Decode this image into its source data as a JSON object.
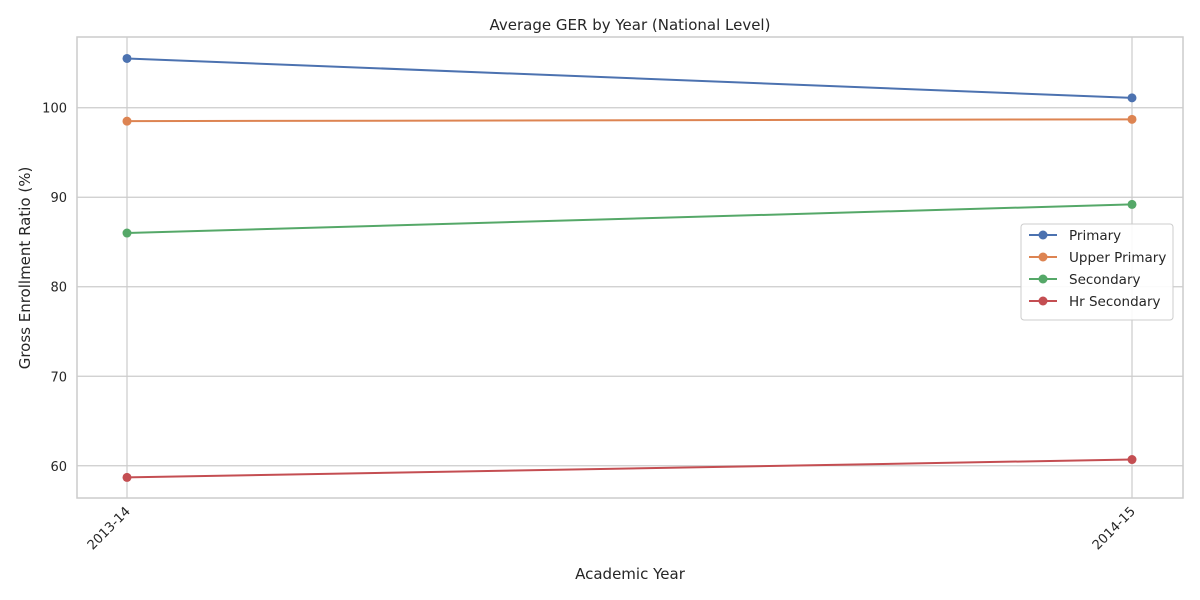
{
  "chart_data": {
    "type": "line",
    "title": "Average GER by Year (National Level)",
    "xlabel": "Academic Year",
    "ylabel": "Gross Enrollment Ratio (%)",
    "categories": [
      "2013-14",
      "2014-15"
    ],
    "ylim": [
      56.4,
      107.9
    ],
    "yticks": [
      60,
      70,
      80,
      90,
      100
    ],
    "grid": true,
    "legend_position": "center-right",
    "series": [
      {
        "name": "Primary",
        "color": "#4c72b0",
        "values": [
          105.5,
          101.1
        ]
      },
      {
        "name": "Upper Primary",
        "color": "#dd8452",
        "values": [
          98.5,
          98.7
        ]
      },
      {
        "name": "Secondary",
        "color": "#55a868",
        "values": [
          86.0,
          89.2
        ]
      },
      {
        "name": "Hr Secondary",
        "color": "#c44e52",
        "values": [
          58.7,
          60.7
        ]
      }
    ]
  }
}
